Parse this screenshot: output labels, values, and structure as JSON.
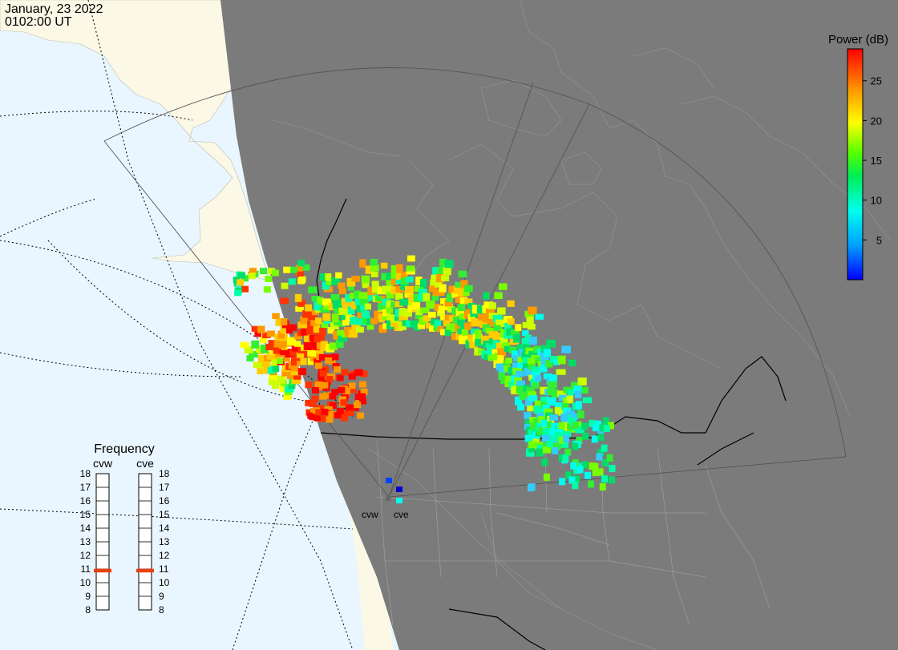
{
  "header": {
    "date": "January, 23 2022",
    "time": "0102:00 UT"
  },
  "colorbar": {
    "title": "Power (dB)",
    "ticks": [
      "25",
      "20",
      "15",
      "10",
      "5"
    ],
    "tick_values": [
      25,
      20,
      15,
      10,
      5
    ],
    "range": [
      0,
      29
    ]
  },
  "radars": {
    "west_label": "cvw",
    "east_label": "cve"
  },
  "frequency": {
    "title": "Frequency",
    "col_left": "cvw",
    "col_right": "cve",
    "ticks": [
      "18",
      "17",
      "16",
      "15",
      "14",
      "13",
      "12",
      "11",
      "10",
      "9",
      "8"
    ],
    "cvw_value": 10.9,
    "cve_value": 10.9,
    "marker_color": "#e8400e"
  },
  "colors": {
    "ocean": "#eaf6ff",
    "land_day": "#fbf8e6",
    "night": "#7b7b7b",
    "coast_night": "#8c8c8c"
  }
}
